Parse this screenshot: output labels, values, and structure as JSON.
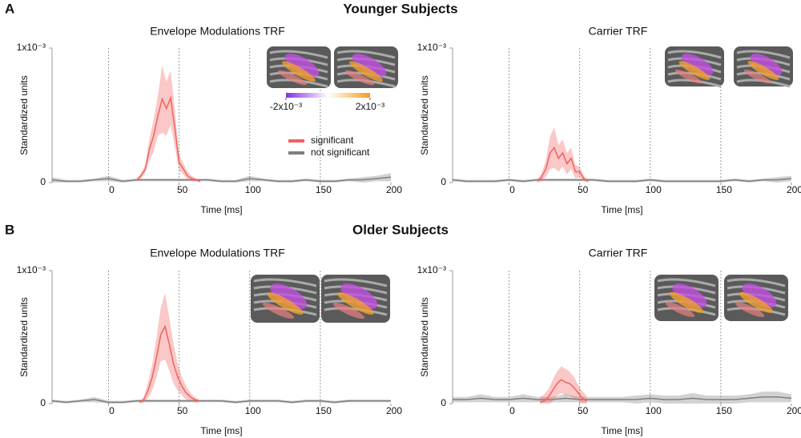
{
  "panel_labels": [
    "A",
    "B"
  ],
  "section_titles": [
    "Younger Subjects",
    "Older Subjects"
  ],
  "chart_data": [
    {
      "type": "line",
      "title": "Envelope Modulations TRF",
      "x_label": "Time [ms]",
      "y_label": "Standardized units",
      "xlim": [
        -40,
        200
      ],
      "xticks": [
        0,
        50,
        100,
        150,
        200
      ],
      "ylim": [
        0,
        0.001
      ],
      "yticks": [
        0,
        {
          "value": 0.001,
          "label": "1x10⁻³"
        }
      ],
      "vlines": [
        0,
        50,
        100,
        150
      ],
      "legend": true,
      "colorbar": {
        "ticks": [
          {
            "value": -0.002,
            "label": "-2x10⁻³"
          },
          {
            "value": 0.002,
            "label": "2x10⁻³"
          }
        ],
        "colors": [
          "#8a2be2",
          "#ffffff",
          "#f0a020"
        ]
      },
      "series": [
        {
          "name": "not significant",
          "color": "#7f7f7f",
          "x": [
            -40,
            -30,
            -20,
            -10,
            0,
            10,
            20,
            30,
            40,
            50,
            60,
            70,
            80,
            90,
            100,
            110,
            120,
            130,
            140,
            150,
            160,
            170,
            180,
            190,
            200
          ],
          "values": [
            2e-05,
            1e-05,
            1e-05,
            2e-05,
            3e-05,
            1e-05,
            2e-05,
            2e-05,
            2e-05,
            2e-05,
            2e-05,
            2e-05,
            1e-05,
            1e-05,
            3e-05,
            2e-05,
            1e-05,
            1e-05,
            2e-05,
            1e-05,
            1e-05,
            2e-05,
            2e-05,
            3e-05,
            4e-05
          ],
          "errors": [
            2e-05,
            1e-05,
            1e-05,
            1e-05,
            2e-05,
            1e-05,
            1e-05,
            1e-05,
            1e-05,
            1e-05,
            1e-05,
            1e-05,
            1e-05,
            1e-05,
            2e-05,
            1e-05,
            1e-05,
            1e-05,
            1e-05,
            1e-05,
            1e-05,
            1e-05,
            2e-05,
            2e-05,
            3e-05
          ]
        },
        {
          "name": "significant",
          "color": "#f0625f",
          "x": [
            20,
            23,
            26,
            29,
            32,
            35,
            38,
            41,
            44,
            47,
            50,
            53,
            56,
            59,
            62,
            65
          ],
          "values": [
            2e-05,
            5e-05,
            0.0001,
            0.00025,
            0.00035,
            0.0005,
            0.00062,
            0.00055,
            0.00063,
            0.0004,
            0.00015,
            0.0001,
            5e-05,
            3e-05,
            2e-05,
            1e-05
          ],
          "errors": [
            1e-05,
            2e-05,
            3e-05,
            8e-05,
            0.00012,
            0.00015,
            0.00025,
            0.0002,
            0.0002,
            0.00014,
            6e-05,
            4e-05,
            3e-05,
            2e-05,
            1e-05,
            1e-05
          ]
        }
      ]
    },
    {
      "type": "line",
      "title": "Carrier TRF",
      "x_label": "Time [ms]",
      "y_label": "Standardized units",
      "xlim": [
        -40,
        200
      ],
      "xticks": [
        0,
        50,
        100,
        150,
        200
      ],
      "ylim": [
        0,
        0.001
      ],
      "yticks": [
        0,
        {
          "value": 0.001,
          "label": "1x10⁻³"
        }
      ],
      "vlines": [
        0,
        50,
        100,
        150
      ],
      "legend": false,
      "series": [
        {
          "name": "not significant",
          "color": "#7f7f7f",
          "x": [
            -40,
            -30,
            -20,
            -10,
            0,
            10,
            20,
            30,
            40,
            50,
            60,
            70,
            80,
            90,
            100,
            110,
            120,
            130,
            140,
            150,
            160,
            170,
            180,
            190,
            200
          ],
          "values": [
            2e-05,
            1e-05,
            1e-05,
            1e-05,
            2e-05,
            1e-05,
            2e-05,
            2e-05,
            2e-05,
            2e-05,
            2e-05,
            1e-05,
            1e-05,
            1e-05,
            2e-05,
            1e-05,
            1e-05,
            1e-05,
            1e-05,
            1e-05,
            2e-05,
            1e-05,
            2e-05,
            2e-05,
            3e-05
          ],
          "errors": [
            1e-05,
            1e-05,
            1e-05,
            1e-05,
            1e-05,
            1e-05,
            1e-05,
            1e-05,
            1e-05,
            1e-05,
            1e-05,
            1e-05,
            1e-05,
            1e-05,
            1e-05,
            1e-05,
            1e-05,
            1e-05,
            1e-05,
            1e-05,
            1e-05,
            1e-05,
            1e-05,
            2e-05,
            2e-05
          ]
        },
        {
          "name": "significant",
          "color": "#f0625f",
          "x": [
            20,
            23,
            26,
            29,
            32,
            35,
            38,
            41,
            44,
            47,
            50,
            53,
            56
          ],
          "values": [
            1e-05,
            4e-05,
            0.0001,
            0.00022,
            0.00026,
            0.00018,
            0.00022,
            0.00014,
            0.00018,
            8e-05,
            8e-05,
            3e-05,
            1e-05
          ],
          "errors": [
            1e-05,
            3e-05,
            6e-05,
            0.00012,
            0.00015,
            0.0001,
            0.0001,
            8e-05,
            8e-05,
            5e-05,
            4e-05,
            2e-05,
            1e-05
          ]
        }
      ]
    },
    {
      "type": "line",
      "title": "Envelope Modulations TRF",
      "x_label": "Time [ms]",
      "y_label": "Standardized units",
      "xlim": [
        -40,
        200
      ],
      "xticks": [
        0,
        50,
        100,
        150,
        200
      ],
      "ylim": [
        0,
        0.001
      ],
      "yticks": [
        0,
        {
          "value": 0.001,
          "label": "1x10⁻³"
        }
      ],
      "vlines": [
        0,
        50,
        100,
        150
      ],
      "legend": false,
      "series": [
        {
          "name": "not significant",
          "color": "#7f7f7f",
          "x": [
            -40,
            -30,
            -20,
            -10,
            0,
            10,
            20,
            30,
            40,
            50,
            60,
            70,
            80,
            90,
            100,
            110,
            120,
            130,
            140,
            150,
            160,
            170,
            180,
            190,
            200
          ],
          "values": [
            2e-05,
            1e-05,
            2e-05,
            3e-05,
            1e-05,
            1e-05,
            2e-05,
            2e-05,
            2e-05,
            2e-05,
            2e-05,
            2e-05,
            2e-05,
            1e-05,
            2e-05,
            2e-05,
            2e-05,
            1e-05,
            2e-05,
            2e-05,
            1e-05,
            2e-05,
            2e-05,
            2e-05,
            2e-05
          ],
          "errors": [
            1e-05,
            1e-05,
            1e-05,
            2e-05,
            1e-05,
            1e-05,
            1e-05,
            1e-05,
            1e-05,
            1e-05,
            1e-05,
            1e-05,
            1e-05,
            1e-05,
            1e-05,
            1e-05,
            1e-05,
            1e-05,
            1e-05,
            1e-05,
            1e-05,
            1e-05,
            1e-05,
            1e-05,
            1e-05
          ]
        },
        {
          "name": "significant",
          "color": "#f0625f",
          "x": [
            22,
            25,
            28,
            31,
            34,
            37,
            40,
            43,
            46,
            49,
            52,
            55,
            58,
            61,
            64
          ],
          "values": [
            1e-05,
            3e-05,
            0.0001,
            0.0002,
            0.00035,
            0.00052,
            0.00058,
            0.00045,
            0.0003,
            0.0002,
            0.00013,
            8e-05,
            5e-05,
            3e-05,
            2e-05
          ],
          "errors": [
            1e-05,
            2e-05,
            6e-05,
            0.0001,
            0.00015,
            0.0002,
            0.00025,
            0.0002,
            0.00015,
            0.0001,
            7e-05,
            5e-05,
            3e-05,
            2e-05,
            1e-05
          ]
        }
      ]
    },
    {
      "type": "line",
      "title": "Carrier TRF",
      "x_label": "Time [ms]",
      "y_label": "Standardized units",
      "xlim": [
        -40,
        200
      ],
      "xticks": [
        0,
        50,
        100,
        150,
        200
      ],
      "ylim": [
        0,
        0.001
      ],
      "yticks": [
        0,
        {
          "value": 0.001,
          "label": "1x10⁻³"
        }
      ],
      "vlines": [
        0,
        50,
        100,
        150
      ],
      "legend": false,
      "series": [
        {
          "name": "not significant",
          "color": "#7f7f7f",
          "x": [
            -40,
            -30,
            -20,
            -10,
            0,
            10,
            20,
            30,
            40,
            50,
            60,
            70,
            80,
            90,
            100,
            110,
            120,
            130,
            140,
            150,
            160,
            170,
            180,
            190,
            200
          ],
          "values": [
            3e-05,
            3e-05,
            4e-05,
            3e-05,
            3e-05,
            4e-05,
            3e-05,
            3e-05,
            4e-05,
            3e-05,
            3e-05,
            3e-05,
            3e-05,
            3e-05,
            4e-05,
            3e-05,
            3e-05,
            4e-05,
            3e-05,
            3e-05,
            3e-05,
            4e-05,
            5e-05,
            5e-05,
            4e-05
          ],
          "errors": [
            2e-05,
            2e-05,
            3e-05,
            2e-05,
            2e-05,
            3e-05,
            2e-05,
            2e-05,
            3e-05,
            2e-05,
            2e-05,
            2e-05,
            2e-05,
            3e-05,
            3e-05,
            3e-05,
            3e-05,
            4e-05,
            3e-05,
            3e-05,
            3e-05,
            3e-05,
            4e-05,
            4e-05,
            3e-05
          ]
        },
        {
          "name": "significant",
          "color": "#f0625f",
          "x": [
            22,
            25,
            28,
            31,
            34,
            37,
            40,
            43,
            46,
            49,
            52,
            55
          ],
          "values": [
            1e-05,
            2e-05,
            5e-05,
            0.0001,
            0.00015,
            0.00018,
            0.00016,
            0.00015,
            0.00012,
            8e-05,
            4e-05,
            2e-05
          ],
          "errors": [
            4e-05,
            5e-05,
            6e-05,
            8e-05,
            9e-05,
            0.0001,
            0.0001,
            9e-05,
            8e-05,
            6e-05,
            5e-05,
            4e-05
          ]
        }
      ]
    }
  ]
}
